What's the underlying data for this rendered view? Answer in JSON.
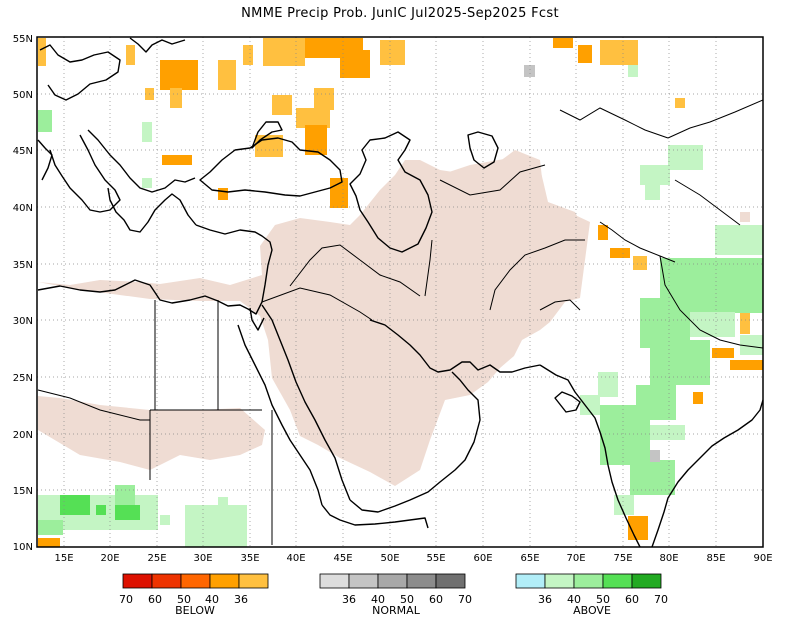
{
  "title": "NMME Precip Prob. JunIC  Jul2025-Sep2025 Fcst",
  "lat_labels": [
    "55N",
    "50N",
    "45N",
    "40N",
    "35N",
    "30N",
    "25N",
    "20N",
    "15N",
    "10N"
  ],
  "lon_labels": [
    "15E",
    "20E",
    "25E",
    "30E",
    "35E",
    "40E",
    "45E",
    "50E",
    "55E",
    "60E",
    "65E",
    "70E",
    "75E",
    "80E",
    "85E",
    "90E"
  ],
  "legend": {
    "below": {
      "title": "BELOW",
      "ticks": [
        "70",
        "60",
        "50",
        "40",
        "36"
      ],
      "colors": [
        "#dd1100",
        "#ee3300",
        "#ff6600",
        "#ffa000",
        "#ffc040"
      ]
    },
    "normal": {
      "title": "NORMAL",
      "ticks": [
        "36",
        "40",
        "50",
        "60",
        "70"
      ],
      "colors": [
        "#dddddd",
        "#c4c4c4",
        "#a8a8a8",
        "#8c8c8c",
        "#707070"
      ]
    },
    "above": {
      "title": "ABOVE",
      "ticks": [
        "36",
        "40",
        "50",
        "60",
        "70"
      ],
      "colors": [
        "#b2eef8",
        "#c4f5c4",
        "#9cee9c",
        "#55e055",
        "#22aa22"
      ]
    }
  },
  "colors": {
    "dry_season": "#efdcd3",
    "below_36": "#ffc040",
    "below_40": "#ffa000",
    "above_36": "#c4f5c4",
    "above_40": "#9cee9c",
    "above_50": "#55e055",
    "normal_40": "#c4c4c4",
    "coastline": "#000000"
  }
}
